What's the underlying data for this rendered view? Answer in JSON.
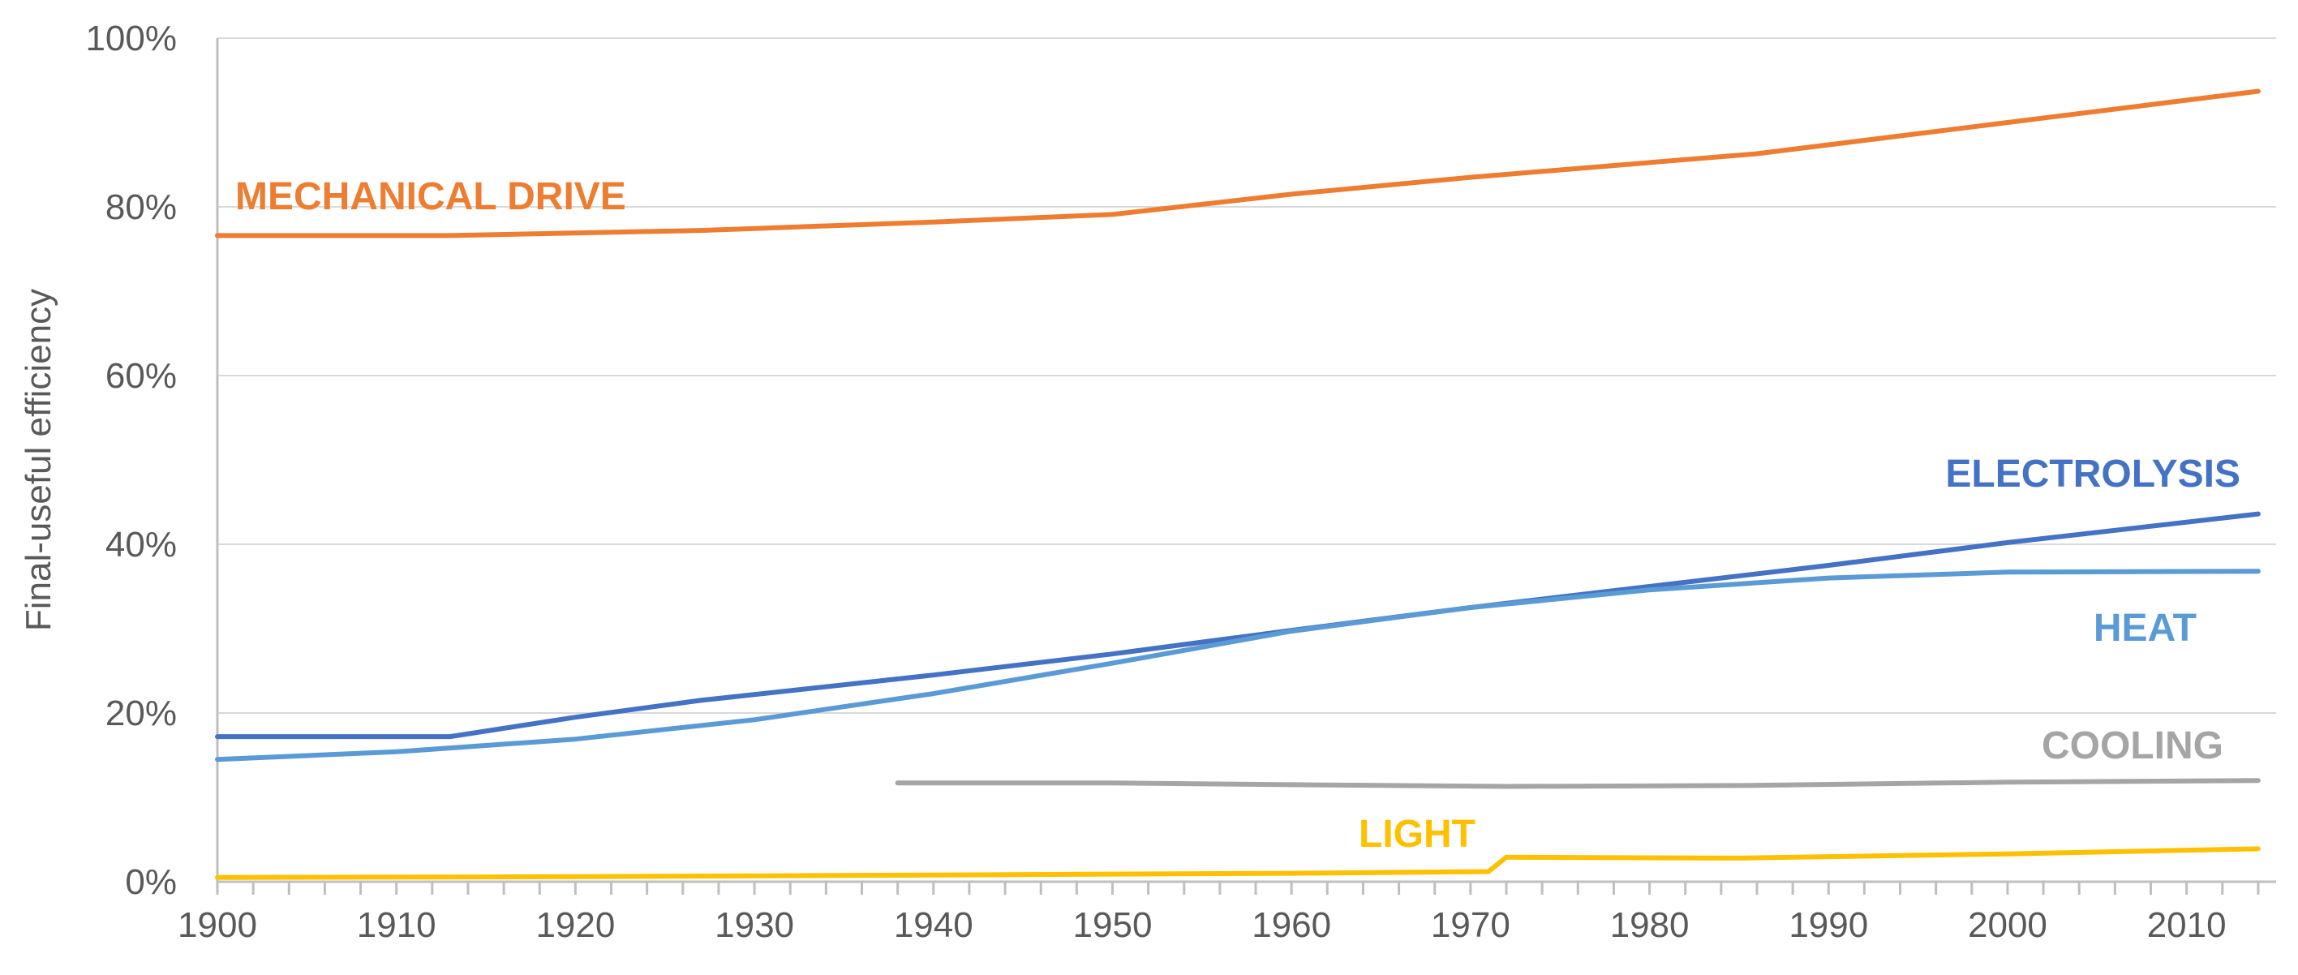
{
  "chart_data": {
    "type": "line",
    "title": "",
    "xlabel": "",
    "ylabel": "Final-useful efficiency",
    "xlim": [
      1900,
      2015
    ],
    "ylim": [
      0,
      100
    ],
    "x_ticks": [
      "1900",
      "1910",
      "1920",
      "1930",
      "1940",
      "1950",
      "1960",
      "1970",
      "1980",
      "1990",
      "2000",
      "2010"
    ],
    "y_ticks": [
      "0%",
      "20%",
      "40%",
      "60%",
      "80%",
      "100%"
    ],
    "grid": true,
    "legend": "none (series labeled inline)",
    "series": [
      {
        "name": "MECHANICAL DRIVE",
        "color": "#ED7D31",
        "x": [
          1900,
          1913,
          1927,
          1940,
          1950,
          1960,
          1970,
          1986,
          2000,
          2014
        ],
        "y": [
          76.6,
          76.6,
          77.2,
          78.2,
          79.1,
          81.5,
          83.5,
          86.3,
          90.0,
          93.7
        ]
      },
      {
        "name": "ELECTROLYSIS",
        "color": "#4472C4",
        "x": [
          1900,
          1913,
          1920,
          1927,
          1940,
          1950,
          1960,
          1970,
          1980,
          1990,
          2000,
          2014
        ],
        "y": [
          17.2,
          17.2,
          19.5,
          21.5,
          24.5,
          27.0,
          29.8,
          32.5,
          35.0,
          37.5,
          40.2,
          43.6
        ]
      },
      {
        "name": "HEAT",
        "color": "#5B9BD5",
        "x": [
          1900,
          1910,
          1920,
          1930,
          1940,
          1950,
          1960,
          1970,
          1980,
          1990,
          2000,
          2014
        ],
        "y": [
          14.5,
          15.4,
          16.9,
          19.2,
          22.3,
          25.9,
          29.7,
          32.5,
          34.6,
          36.0,
          36.7,
          36.8
        ]
      },
      {
        "name": "COOLING",
        "color": "#A5A5A5",
        "x": [
          1938,
          1950,
          1960,
          1972,
          1985,
          2000,
          2014
        ],
        "y": [
          11.7,
          11.7,
          11.5,
          11.3,
          11.4,
          11.8,
          12.0
        ]
      },
      {
        "name": "LIGHT",
        "color": "#FFC000",
        "x": [
          1900,
          1920,
          1940,
          1960,
          1971,
          1972,
          1985,
          2000,
          2014
        ],
        "y": [
          0.5,
          0.6,
          0.8,
          1.0,
          1.2,
          2.9,
          2.8,
          3.3,
          3.9
        ]
      }
    ]
  }
}
